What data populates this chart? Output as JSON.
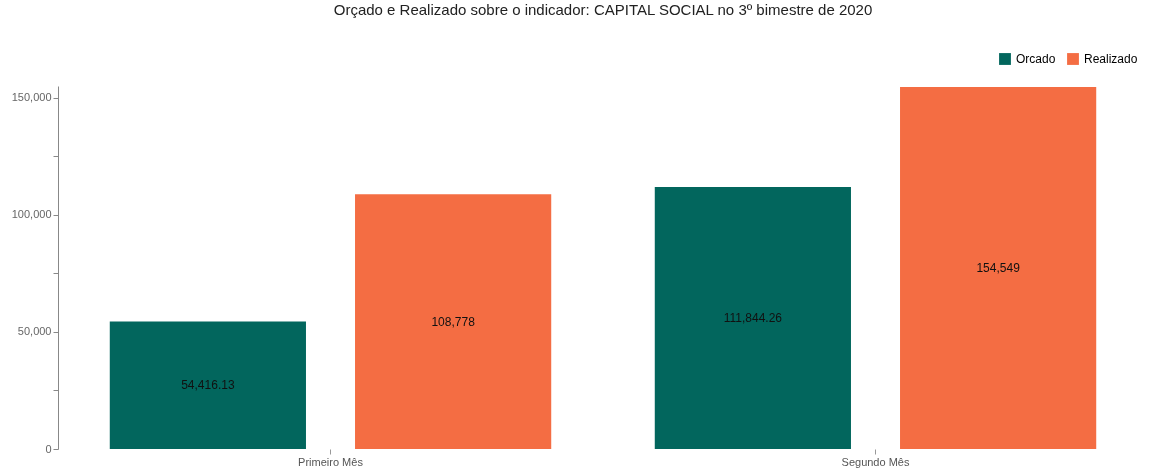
{
  "chart_data": {
    "type": "bar",
    "title": "Orçado e Realizado sobre o indicador: CAPITAL SOCIAL no 3º bimestre de 2020",
    "categories": [
      "Primeiro Mês",
      "Segundo Mês"
    ],
    "series": [
      {
        "name": "Orcado",
        "color": "#02665d",
        "values": [
          54416.13,
          111844.26
        ],
        "value_labels": [
          "54,416.13",
          "111,844.26"
        ]
      },
      {
        "name": "Realizado",
        "color": "#f46d43",
        "values": [
          108778,
          154549
        ],
        "value_labels": [
          "108,778",
          "154,549"
        ]
      }
    ],
    "ylim": [
      0,
      155000
    ],
    "yticks": [
      0,
      {
        "value": 25000,
        "label": null
      },
      {
        "value": 50000,
        "label": "50,000"
      },
      {
        "value": 75000,
        "label": null
      },
      {
        "value": 100000,
        "label": "100,000"
      },
      {
        "value": 125000,
        "label": null
      },
      {
        "value": 150000,
        "label": "150,000"
      }
    ],
    "grid": false,
    "legend": "top right"
  }
}
